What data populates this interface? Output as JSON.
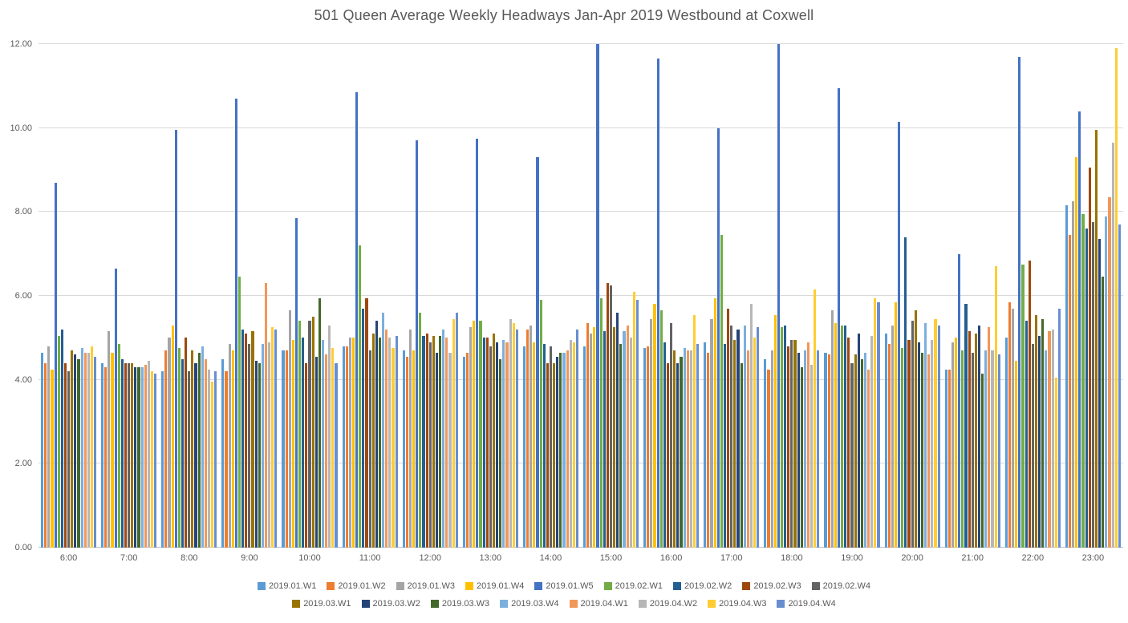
{
  "chart_data": {
    "type": "bar",
    "title": "501 Queen Average Weekly Headways Jan-Apr 2019 Westbound at Coxwell",
    "xlabel": "",
    "ylabel": "",
    "ylim": [
      0,
      12
    ],
    "y_ticks": [
      "0.00",
      "2.00",
      "4.00",
      "6.00",
      "8.00",
      "10.00",
      "12.00"
    ],
    "grid": true,
    "legend_position": "bottom",
    "legend_row_split": 9,
    "categories": [
      "6:00",
      "7:00",
      "8:00",
      "9:00",
      "10:00",
      "11:00",
      "12:00",
      "13:00",
      "14:00",
      "15:00",
      "16:00",
      "17:00",
      "18:00",
      "19:00",
      "20:00",
      "21:00",
      "22:00",
      "23:00"
    ],
    "series": [
      {
        "name": "2019.01.W1",
        "color": "#5B9BD5",
        "values": [
          4.65,
          4.4,
          4.2,
          4.5,
          4.7,
          4.8,
          4.7,
          4.55,
          4.8,
          4.8,
          4.75,
          4.9,
          4.5,
          4.65,
          5.1,
          4.25,
          5.0,
          8.15
        ]
      },
      {
        "name": "2019.01.W2",
        "color": "#ED7D31",
        "values": [
          4.4,
          4.3,
          4.7,
          4.2,
          4.7,
          4.8,
          4.55,
          4.65,
          5.2,
          5.35,
          4.8,
          4.65,
          4.25,
          4.6,
          4.85,
          4.25,
          5.85,
          7.45
        ]
      },
      {
        "name": "2019.01.W3",
        "color": "#A5A5A5",
        "values": [
          4.8,
          5.15,
          5.0,
          4.85,
          5.65,
          5.0,
          5.2,
          5.25,
          5.3,
          5.1,
          5.45,
          5.45,
          4.7,
          5.65,
          5.3,
          4.9,
          5.7,
          8.25
        ]
      },
      {
        "name": "2019.01.W4",
        "color": "#FFC000",
        "values": [
          4.25,
          4.65,
          5.3,
          4.7,
          4.95,
          5.0,
          4.7,
          5.4,
          4.9,
          5.25,
          5.8,
          5.95,
          5.55,
          5.35,
          5.85,
          5.0,
          4.45,
          9.3
        ]
      },
      {
        "name": "2019.01.W5",
        "color": "#4472C4",
        "values": [
          8.7,
          6.65,
          9.95,
          10.7,
          7.85,
          10.85,
          9.7,
          9.75,
          9.3,
          12.0,
          11.65,
          10.0,
          12.0,
          10.95,
          10.15,
          7.0,
          11.7,
          10.4
        ]
      },
      {
        "name": "2019.02.W1",
        "color": "#70AD47",
        "values": [
          5.05,
          4.85,
          4.75,
          6.45,
          5.4,
          7.2,
          5.6,
          5.4,
          5.9,
          5.95,
          5.65,
          7.45,
          5.25,
          5.3,
          4.75,
          4.7,
          6.75,
          7.95
        ]
      },
      {
        "name": "2019.02.W2",
        "color": "#255E91",
        "values": [
          5.2,
          4.5,
          4.5,
          5.2,
          5.0,
          5.7,
          5.05,
          5.0,
          4.85,
          5.15,
          4.9,
          4.85,
          5.3,
          5.3,
          7.4,
          5.8,
          5.4,
          7.6
        ]
      },
      {
        "name": "2019.02.W3",
        "color": "#9E480E",
        "values": [
          4.4,
          4.4,
          5.0,
          5.1,
          4.4,
          5.95,
          5.1,
          5.0,
          4.4,
          6.3,
          4.4,
          5.7,
          4.8,
          5.0,
          4.95,
          5.15,
          6.85,
          9.05
        ]
      },
      {
        "name": "2019.02.W4",
        "color": "#636363",
        "values": [
          4.2,
          4.4,
          4.2,
          4.85,
          5.4,
          4.7,
          4.9,
          4.8,
          4.8,
          6.25,
          5.35,
          5.3,
          4.95,
          4.4,
          5.4,
          4.65,
          4.85,
          7.75
        ]
      },
      {
        "name": "2019.03.W1",
        "color": "#997300",
        "values": [
          4.7,
          4.4,
          4.7,
          5.15,
          5.5,
          5.1,
          5.05,
          5.1,
          4.4,
          5.25,
          4.7,
          4.95,
          4.95,
          4.6,
          5.65,
          5.1,
          5.55,
          9.95
        ]
      },
      {
        "name": "2019.03.W2",
        "color": "#264478",
        "values": [
          4.6,
          4.3,
          4.4,
          4.45,
          4.55,
          5.4,
          4.65,
          4.9,
          4.55,
          5.6,
          4.4,
          5.2,
          4.65,
          5.1,
          4.9,
          5.3,
          5.05,
          7.35
        ]
      },
      {
        "name": "2019.03.W3",
        "color": "#43682B",
        "values": [
          4.5,
          4.3,
          4.65,
          4.4,
          5.95,
          5.0,
          5.05,
          4.5,
          4.65,
          4.85,
          4.55,
          4.4,
          4.3,
          4.5,
          4.65,
          4.15,
          5.45,
          6.45
        ]
      },
      {
        "name": "2019.03.W4",
        "color": "#7CAFDD",
        "values": [
          4.75,
          4.3,
          4.8,
          4.85,
          4.95,
          5.6,
          5.2,
          4.95,
          4.65,
          5.15,
          4.75,
          5.3,
          4.7,
          4.65,
          5.35,
          4.7,
          4.7,
          7.9
        ]
      },
      {
        "name": "2019.04.W1",
        "color": "#F1975A",
        "values": [
          4.65,
          4.35,
          4.5,
          6.3,
          4.6,
          5.2,
          5.0,
          4.9,
          4.7,
          5.3,
          4.7,
          4.7,
          4.9,
          4.25,
          4.6,
          5.25,
          5.15,
          8.35
        ]
      },
      {
        "name": "2019.04.W2",
        "color": "#B7B7B7",
        "values": [
          4.65,
          4.45,
          4.25,
          4.9,
          5.3,
          5.0,
          4.65,
          5.45,
          4.95,
          5.0,
          4.7,
          5.8,
          4.35,
          5.05,
          4.95,
          4.7,
          5.2,
          9.65
        ]
      },
      {
        "name": "2019.04.W3",
        "color": "#FFCD33",
        "values": [
          4.8,
          4.2,
          3.95,
          5.25,
          4.75,
          4.75,
          5.45,
          5.35,
          4.9,
          6.1,
          5.55,
          5.0,
          6.15,
          5.95,
          5.45,
          6.7,
          4.05,
          11.9
        ]
      },
      {
        "name": "2019.04.W4",
        "color": "#698ED0",
        "values": [
          4.55,
          4.15,
          4.2,
          5.2,
          4.4,
          5.05,
          5.6,
          5.2,
          5.2,
          5.9,
          4.85,
          5.25,
          4.7,
          5.85,
          5.3,
          4.6,
          5.7,
          7.7
        ]
      }
    ],
    "style": {
      "background": "#FFFFFF",
      "grid_color": "#D9D9D9",
      "axis_color": "#BFBFBF",
      "text_color": "#595959",
      "title_color": "#595959"
    }
  }
}
